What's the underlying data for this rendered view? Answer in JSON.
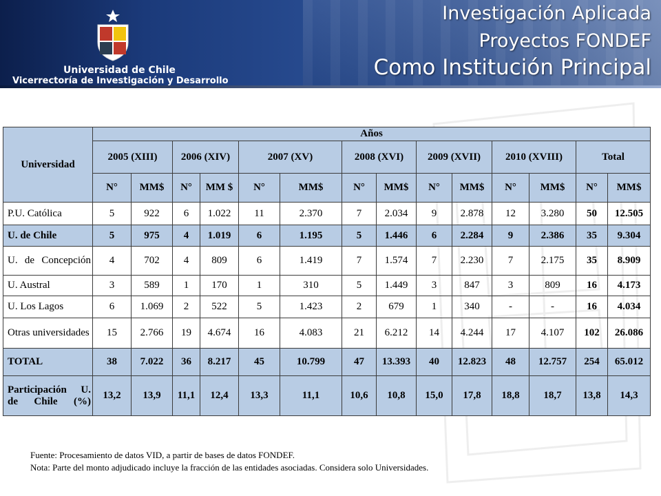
{
  "header": {
    "institution_line1": "Universidad de Chile",
    "institution_line2": "Vicerrectoría de Investigación y Desarrollo",
    "title_line1": "Investigación Aplicada",
    "title_line2": "Proyectos FONDEF",
    "title_line3": "Como Institución Principal",
    "logo_icon": "university-crest-icon"
  },
  "table": {
    "col_university": "Universidad",
    "col_years": "Años",
    "periods": [
      "2005 (XIII)",
      "2006 (XIV)",
      "2007 (XV)",
      "2008 (XVI)",
      "2009 (XVII)",
      "2010 (XVIII)",
      "Total"
    ],
    "sub": {
      "n": "N°",
      "mm": "MM$",
      "mm_2006": "MM $"
    },
    "rows": [
      {
        "label": "P.U. Católica",
        "cells": [
          "5",
          "922",
          "6",
          "1.022",
          "11",
          "2.370",
          "7",
          "2.034",
          "9",
          "2.878",
          "12",
          "3.280",
          "50",
          "12.505"
        ]
      },
      {
        "label": "U. de Chile",
        "cells": [
          "5",
          "975",
          "4",
          "1.019",
          "6",
          "1.195",
          "5",
          "1.446",
          "6",
          "2.284",
          "9",
          "2.386",
          "35",
          "9.304"
        ]
      },
      {
        "label": "U. de Concepción",
        "cells": [
          "4",
          "702",
          "4",
          "809",
          "6",
          "1.419",
          "7",
          "1.574",
          "7",
          "2.230",
          "7",
          "2.175",
          "35",
          "8.909"
        ]
      },
      {
        "label": "U. Austral",
        "cells": [
          "3",
          "589",
          "1",
          "170",
          "1",
          "310",
          "5",
          "1.449",
          "3",
          "847",
          "3",
          "809",
          "16",
          "4.173"
        ]
      },
      {
        "label": "U. Los Lagos",
        "cells": [
          "6",
          "1.069",
          "2",
          "522",
          "5",
          "1.423",
          "2",
          "679",
          "1",
          "340",
          "-",
          "-",
          "16",
          "4.034"
        ]
      },
      {
        "label": "Otras universidades",
        "cells": [
          "15",
          "2.766",
          "19",
          "4.674",
          "16",
          "4.083",
          "21",
          "6.212",
          "14",
          "4.244",
          "17",
          "4.107",
          "102",
          "26.086"
        ]
      },
      {
        "label": "TOTAL",
        "cells": [
          "38",
          "7.022",
          "36",
          "8.217",
          "45",
          "10.799",
          "47",
          "13.393",
          "40",
          "12.823",
          "48",
          "12.757",
          "254",
          "65.012"
        ]
      },
      {
        "label": "Participación U. de Chile (%)",
        "cells": [
          "13,2",
          "13,9",
          "11,1",
          "12,4",
          "13,3",
          "11,1",
          "10,6",
          "10,8",
          "15,0",
          "17,8",
          "18,8",
          "18,7",
          "13,8",
          "14,3"
        ]
      }
    ]
  },
  "notes": {
    "source": "Fuente: Procesamiento  de datos VID, a partir de bases de datos FONDEF.",
    "note": "Nota: Parte del monto adjudicado incluye la fracción de las entidades asociadas. Considera solo Universidades."
  },
  "colors": {
    "header_dark": "#0c1f4c",
    "header_mid": "#26498d",
    "table_header_fill": "#b8cce4"
  }
}
